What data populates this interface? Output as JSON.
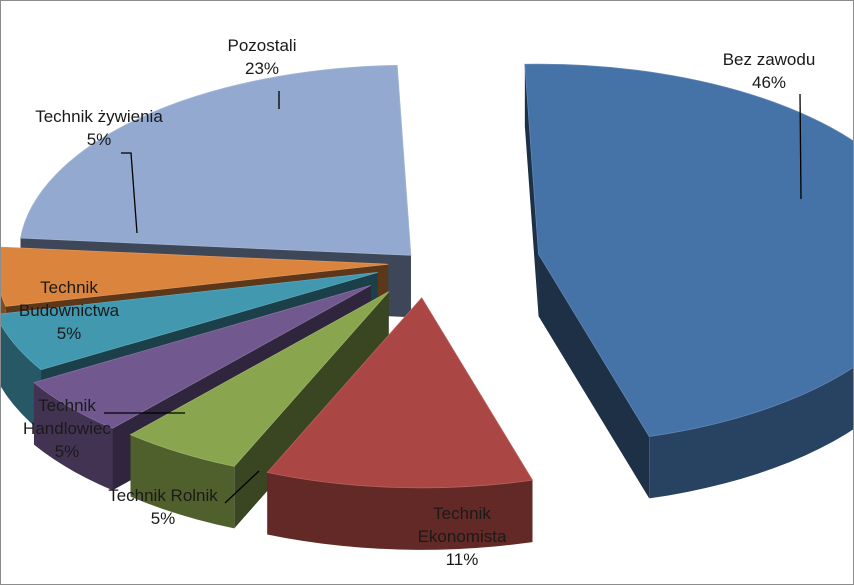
{
  "chart_data": {
    "type": "pie",
    "style": "3d-exploded",
    "legend": "none",
    "slices": [
      {
        "label": [
          "Bez zawodu"
        ],
        "value": 46,
        "value_label": "46%",
        "color": "#4572A7"
      },
      {
        "label": [
          "Technik",
          "Ekonomista"
        ],
        "value": 11,
        "value_label": "11%",
        "color": "#AA4643"
      },
      {
        "label": [
          "Technik Rolnik"
        ],
        "value": 5,
        "value_label": "5%",
        "color": "#89A54E"
      },
      {
        "label": [
          "Technik",
          "Handlowiec"
        ],
        "value": 5,
        "value_label": "5%",
        "color": "#71588F"
      },
      {
        "label": [
          "Technik",
          "Budownictwa"
        ],
        "value": 5,
        "value_label": "5%",
        "color": "#4198AF"
      },
      {
        "label": [
          "Technik żywienia"
        ],
        "value": 5,
        "value_label": "5%",
        "color": "#DB843D"
      },
      {
        "label": [
          "Pozostali"
        ],
        "value": 23,
        "value_label": "23%",
        "color": "#93A9CF"
      }
    ]
  }
}
